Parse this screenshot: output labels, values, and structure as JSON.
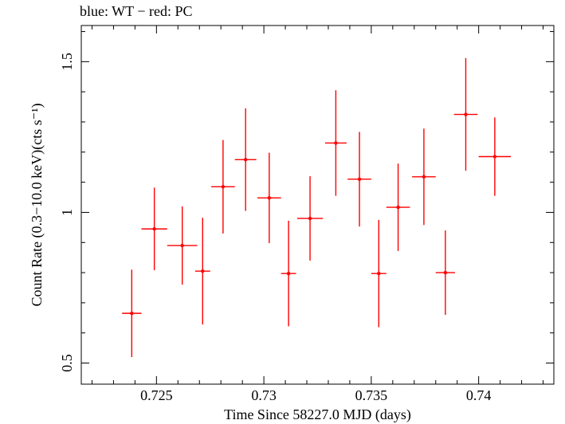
{
  "chart_data": {
    "type": "scatter",
    "title": "blue: WT − red: PC",
    "xlabel": "Time Since 58227.0 MJD (days)",
    "ylabel": "Count Rate (0.3−10.0 keV)(cts s⁻¹)",
    "xlim": [
      0.7215,
      0.7435
    ],
    "ylim": [
      0.43,
      1.62
    ],
    "x_ticks": [
      0.725,
      0.73,
      0.735,
      0.74
    ],
    "x_tick_labels": [
      "0.725",
      "0.73",
      "0.735",
      "0.74"
    ],
    "y_ticks": [
      0.5,
      1.0,
      1.5
    ],
    "y_tick_labels": [
      "0.5",
      "1",
      "1.5"
    ],
    "grid": false,
    "series": [
      {
        "name": "PC",
        "color": "#ff0000",
        "points": [
          {
            "x": 0.72385,
            "y": 0.665,
            "xerr": 0.00045,
            "yerr": 0.145
          },
          {
            "x": 0.7249,
            "y": 0.945,
            "xerr": 0.0006,
            "yerr": 0.137
          },
          {
            "x": 0.7262,
            "y": 0.89,
            "xerr": 0.0007,
            "yerr": 0.13
          },
          {
            "x": 0.72715,
            "y": 0.805,
            "xerr": 0.00035,
            "yerr": 0.177
          },
          {
            "x": 0.7281,
            "y": 1.085,
            "xerr": 0.00055,
            "yerr": 0.155
          },
          {
            "x": 0.72915,
            "y": 1.175,
            "xerr": 0.0005,
            "yerr": 0.17
          },
          {
            "x": 0.73025,
            "y": 1.048,
            "xerr": 0.00055,
            "yerr": 0.15
          },
          {
            "x": 0.73115,
            "y": 0.797,
            "xerr": 0.00035,
            "yerr": 0.175
          },
          {
            "x": 0.73215,
            "y": 0.98,
            "xerr": 0.0006,
            "yerr": 0.14
          },
          {
            "x": 0.73335,
            "y": 1.23,
            "xerr": 0.0005,
            "yerr": 0.175
          },
          {
            "x": 0.73445,
            "y": 1.11,
            "xerr": 0.00055,
            "yerr": 0.157
          },
          {
            "x": 0.73535,
            "y": 0.797,
            "xerr": 0.00035,
            "yerr": 0.178
          },
          {
            "x": 0.73625,
            "y": 1.017,
            "xerr": 0.00055,
            "yerr": 0.145
          },
          {
            "x": 0.73745,
            "y": 1.118,
            "xerr": 0.00055,
            "yerr": 0.16
          },
          {
            "x": 0.73845,
            "y": 0.8,
            "xerr": 0.00045,
            "yerr": 0.14
          },
          {
            "x": 0.7394,
            "y": 1.325,
            "xerr": 0.00055,
            "yerr": 0.187
          },
          {
            "x": 0.74075,
            "y": 1.185,
            "xerr": 0.00075,
            "yerr": 0.13
          }
        ]
      }
    ]
  }
}
